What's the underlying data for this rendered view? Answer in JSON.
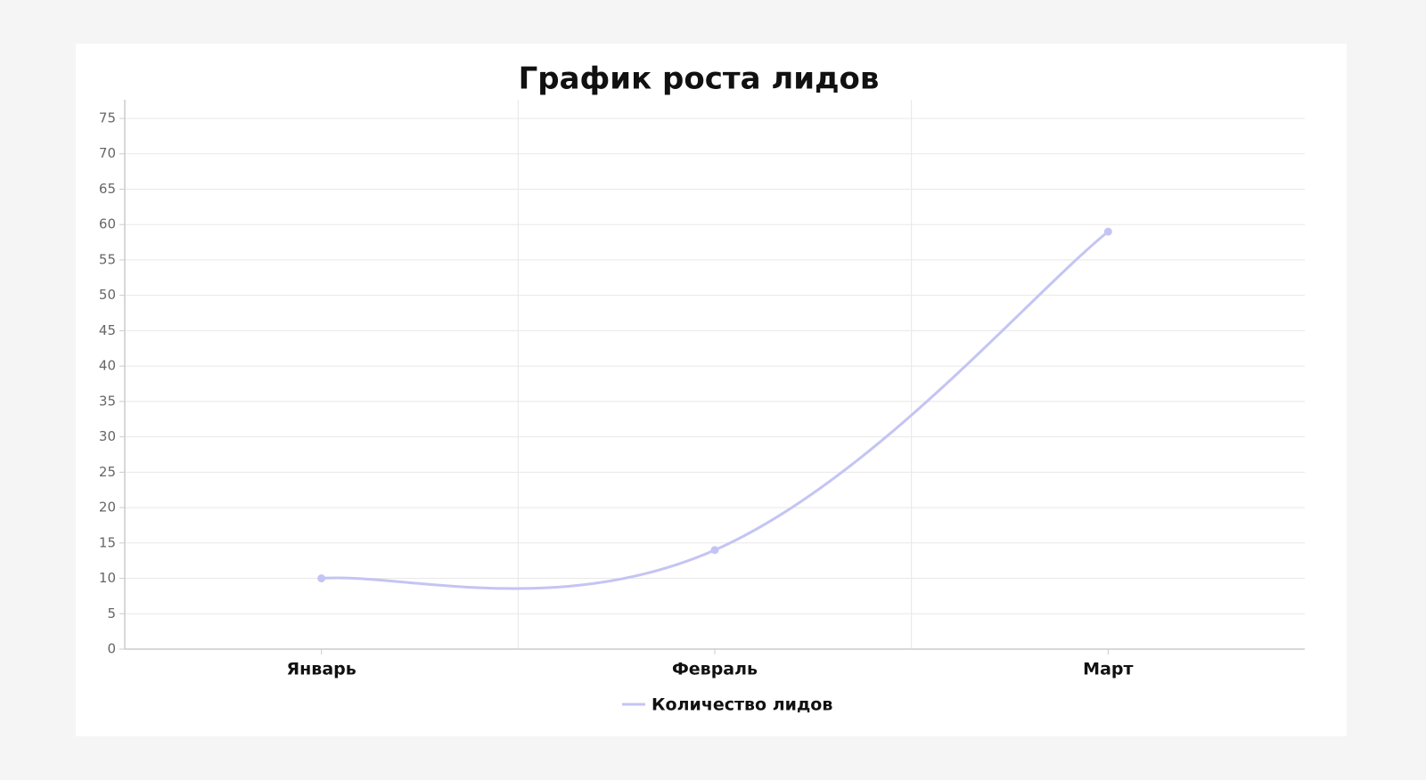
{
  "chart_data": {
    "type": "line",
    "title": "График роста лидов",
    "categories": [
      "Январь",
      "Февраль",
      "Март"
    ],
    "series": [
      {
        "name": "Количество лидов",
        "color": "#c4c4f4",
        "values": [
          10,
          14,
          59
        ]
      }
    ],
    "ylim": [
      0,
      75
    ],
    "yticks": [
      0,
      5,
      10,
      15,
      20,
      25,
      30,
      35,
      40,
      45,
      50,
      55,
      60,
      65,
      70,
      75
    ],
    "grid": true,
    "legend": "bottom"
  }
}
